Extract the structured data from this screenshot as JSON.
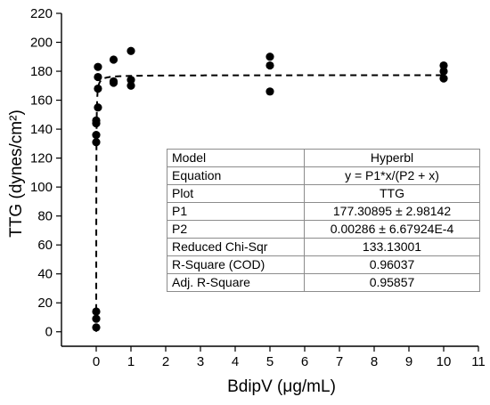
{
  "chart_data": {
    "type": "scatter",
    "xlabel": "BdipV (μg/mL)",
    "ylabel": "TTG (dynes/cm²)",
    "xlim": [
      -1,
      11
    ],
    "ylim": [
      -10,
      220
    ],
    "x_ticks": [
      0,
      1,
      2,
      3,
      4,
      5,
      6,
      7,
      8,
      9,
      10,
      11
    ],
    "y_ticks": [
      0,
      20,
      40,
      60,
      80,
      100,
      120,
      140,
      160,
      180,
      200,
      220
    ],
    "grid": false,
    "series": [
      {
        "points": [
          [
            0,
            3
          ],
          [
            0,
            9
          ],
          [
            0,
            14
          ],
          [
            0,
            131
          ],
          [
            0,
            136
          ],
          [
            0,
            144
          ],
          [
            0,
            146
          ],
          [
            0.05,
            155
          ],
          [
            0.05,
            168
          ],
          [
            0.05,
            176
          ],
          [
            0.05,
            183
          ],
          [
            0.5,
            172
          ],
          [
            0.5,
            173
          ],
          [
            0.5,
            188
          ],
          [
            1,
            170
          ],
          [
            1,
            174
          ],
          [
            1,
            194
          ],
          [
            5,
            166
          ],
          [
            5,
            184
          ],
          [
            5,
            190
          ],
          [
            10,
            175
          ],
          [
            10,
            180
          ],
          [
            10,
            184
          ]
        ]
      }
    ],
    "fit": {
      "model": "Hyperbl",
      "P1": 177.30895,
      "P2": 0.00286,
      "line_style": "dashed"
    }
  },
  "fit_table": [
    [
      "Model",
      "Hyperbl"
    ],
    [
      "Equation",
      "y = P1*x/(P2 + x)"
    ],
    [
      "Plot",
      "TTG"
    ],
    [
      "P1",
      "177.30895 ± 2.98142"
    ],
    [
      "P2",
      "0.00286 ± 6.67924E-4"
    ],
    [
      "Reduced Chi-Sqr",
      "133.13001"
    ],
    [
      "R-Square (COD)",
      "0.96037"
    ],
    [
      "Adj. R-Square",
      "0.95857"
    ]
  ]
}
